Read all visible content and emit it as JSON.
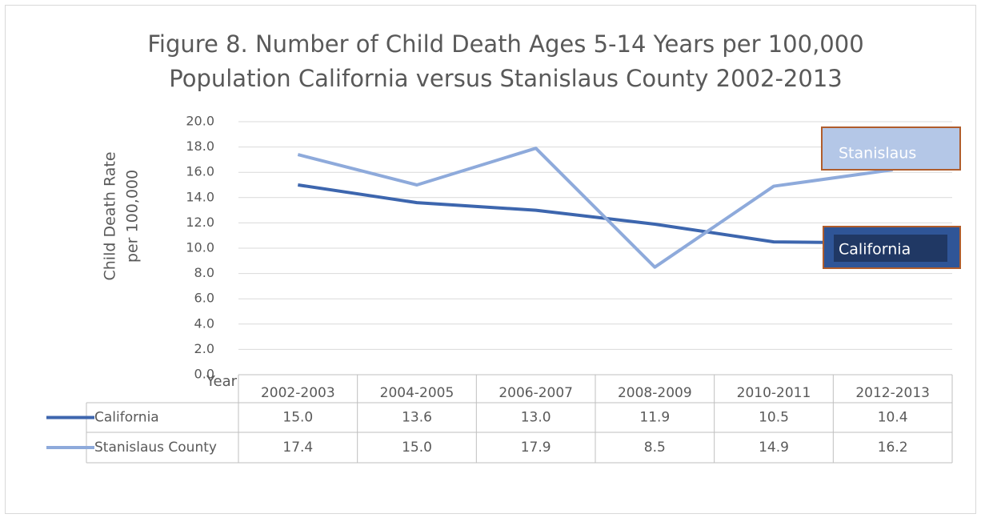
{
  "chart_data": {
    "type": "line",
    "title": [
      "Figure 8. Number of Child Death Ages 5-14 Years per 100,000",
      "Population California versus Stanislaus County 2002-2013"
    ],
    "y_label": [
      "Child Death Rate",
      "per 100,000"
    ],
    "x_label": "Year",
    "categories": [
      "2002-2003",
      "2004-2005",
      "2006-2007",
      "2008-2009",
      "2010-2011",
      "2012-2013"
    ],
    "series": [
      {
        "name": "California",
        "color": "#3d66ae",
        "values": [
          15.0,
          13.6,
          13.0,
          11.9,
          10.5,
          10.4
        ],
        "value_labels": [
          "15.0",
          "13.6",
          "13.0",
          "11.9",
          "10.5",
          "10.4"
        ]
      },
      {
        "name": "Stanislaus County",
        "color": "#8eaadb",
        "values": [
          17.4,
          15.0,
          17.9,
          8.5,
          14.9,
          16.2
        ],
        "value_labels": [
          "17.4",
          "15.0",
          "17.9",
          "8.5",
          "14.9",
          "16.2"
        ]
      }
    ],
    "annotations": [
      "Stanislaus",
      "California"
    ],
    "ylim": [
      0,
      20
    ],
    "yticks": [
      {
        "value": 0,
        "label": "0.0"
      },
      {
        "value": 2,
        "label": "2.0"
      },
      {
        "value": 4,
        "label": "4.0"
      },
      {
        "value": 6,
        "label": "6.0"
      },
      {
        "value": 8,
        "label": "8.0"
      },
      {
        "value": 10,
        "label": "10.0"
      },
      {
        "value": 12,
        "label": "12.0"
      },
      {
        "value": 14,
        "label": "14.0"
      },
      {
        "value": 16,
        "label": "16.0"
      },
      {
        "value": 18,
        "label": "18.0"
      },
      {
        "value": 20,
        "label": "20.0"
      }
    ],
    "grid": true,
    "data_table": true
  }
}
